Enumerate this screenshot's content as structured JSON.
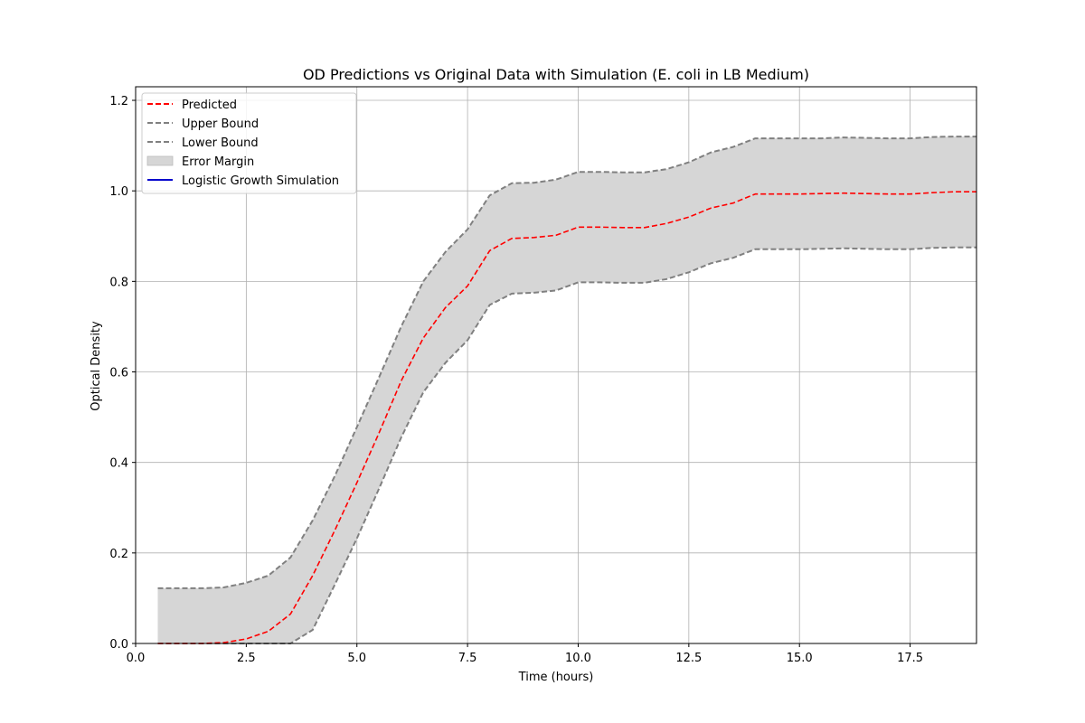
{
  "chart_data": {
    "type": "line",
    "title": "OD Predictions vs Original Data with Simulation (E. coli in LB Medium)",
    "xlabel": "Time (hours)",
    "ylabel": "Optical Density",
    "xlim": [
      0,
      19
    ],
    "ylim": [
      0,
      1.23
    ],
    "xticks": [
      0.0,
      2.5,
      5.0,
      7.5,
      10.0,
      12.5,
      15.0,
      17.5
    ],
    "xtick_labels": [
      "0.0",
      "2.5",
      "5.0",
      "7.5",
      "10.0",
      "12.5",
      "15.0",
      "17.5"
    ],
    "yticks": [
      0.0,
      0.2,
      0.4,
      0.6,
      0.8,
      1.0,
      1.2
    ],
    "ytick_labels": [
      "0.0",
      "0.2",
      "0.4",
      "0.6",
      "0.8",
      "1.0",
      "1.2"
    ],
    "grid": true,
    "legend_position": "upper-left",
    "x": [
      0.5,
      1.0,
      1.5,
      2.0,
      2.5,
      3.0,
      3.5,
      4.0,
      4.5,
      5.0,
      5.5,
      6.0,
      6.5,
      7.0,
      7.5,
      8.0,
      8.5,
      9.0,
      9.5,
      10.0,
      10.5,
      11.0,
      11.5,
      12.0,
      12.5,
      13.0,
      13.5,
      14.0,
      14.5,
      15.0,
      15.5,
      16.0,
      16.5,
      17.0,
      17.5,
      18.0,
      18.5,
      19.0
    ],
    "series": [
      {
        "name": "Predicted",
        "color": "#ff0000",
        "style": "dashed",
        "values": [
          0.0,
          0.0,
          0.0,
          0.002,
          0.01,
          0.027,
          0.065,
          0.15,
          0.25,
          0.355,
          0.465,
          0.58,
          0.675,
          0.742,
          0.79,
          0.868,
          0.895,
          0.897,
          0.902,
          0.92,
          0.92,
          0.919,
          0.919,
          0.928,
          0.942,
          0.962,
          0.973,
          0.993,
          0.993,
          0.993,
          0.994,
          0.995,
          0.994,
          0.993,
          0.993,
          0.996,
          0.998,
          0.998
        ]
      },
      {
        "name": "Upper Bound",
        "color": "#808080",
        "style": "dashed",
        "values": [
          0.122,
          0.122,
          0.122,
          0.124,
          0.134,
          0.15,
          0.19,
          0.272,
          0.37,
          0.478,
          0.588,
          0.7,
          0.8,
          0.865,
          0.915,
          0.99,
          1.017,
          1.018,
          1.025,
          1.042,
          1.042,
          1.041,
          1.041,
          1.048,
          1.063,
          1.085,
          1.097,
          1.116,
          1.116,
          1.116,
          1.116,
          1.118,
          1.117,
          1.116,
          1.116,
          1.119,
          1.12,
          1.12
        ]
      },
      {
        "name": "Lower Bound",
        "color": "#808080",
        "style": "dashed",
        "values": [
          0.0,
          0.0,
          0.0,
          0.0,
          0.0,
          0.0,
          0.0,
          0.03,
          0.13,
          0.232,
          0.342,
          0.455,
          0.555,
          0.62,
          0.67,
          0.748,
          0.773,
          0.775,
          0.78,
          0.798,
          0.798,
          0.797,
          0.797,
          0.805,
          0.82,
          0.84,
          0.852,
          0.871,
          0.871,
          0.871,
          0.872,
          0.873,
          0.872,
          0.871,
          0.871,
          0.874,
          0.875,
          0.875
        ]
      }
    ],
    "fill": {
      "name": "Error Margin",
      "color": "#d6d6d6",
      "between": [
        "Lower Bound",
        "Upper Bound"
      ]
    },
    "legend": [
      {
        "label": "Predicted",
        "color": "#ff0000",
        "style": "dashed"
      },
      {
        "label": "Upper Bound",
        "color": "#808080",
        "style": "dashed"
      },
      {
        "label": "Lower Bound",
        "color": "#808080",
        "style": "dashed"
      },
      {
        "label": "Error Margin",
        "color": "#d6d6d6",
        "style": "patch"
      },
      {
        "label": "Logistic Growth Simulation",
        "color": "#0000cc",
        "style": "solid"
      }
    ]
  }
}
